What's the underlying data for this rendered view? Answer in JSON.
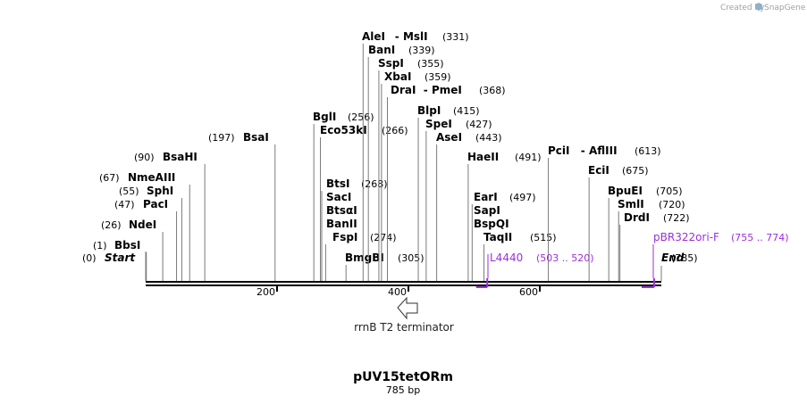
{
  "credit": {
    "prefix": "Created by",
    "brand": "SnapGene"
  },
  "map": {
    "name": "pUV15tetORm",
    "length_label": "785 bp",
    "length": 785,
    "ruler_ticks": [
      {
        "pos": 200,
        "label": "200"
      },
      {
        "pos": 400,
        "label": "400"
      },
      {
        "pos": 600,
        "label": "600"
      }
    ],
    "ends": [
      {
        "name": "Start",
        "pos": 0,
        "pos_label": "(0)"
      },
      {
        "name": "End",
        "pos": 785,
        "pos_label": "(785)"
      }
    ],
    "sites": [
      {
        "name": "BbsI",
        "pos": 1,
        "pos_label": "(1)"
      },
      {
        "name": "NdeI",
        "pos": 26,
        "pos_label": "(26)"
      },
      {
        "name": "PacI",
        "pos": 47,
        "pos_label": "(47)"
      },
      {
        "name": "SphI",
        "pos": 55,
        "pos_label": "(55)"
      },
      {
        "name": "NmeAIII",
        "pos": 67,
        "pos_label": "(67)"
      },
      {
        "name": "BsaHI",
        "pos": 90,
        "pos_label": "(90)"
      },
      {
        "name": "BsaI",
        "pos": 197,
        "pos_label": "(197)"
      },
      {
        "name": "BglI",
        "pos": 256,
        "pos_label": "(256)"
      },
      {
        "name": "Eco53kI",
        "pos": 266,
        "pos_label": "(266)"
      },
      {
        "name": "BtsI",
        "pos": 268,
        "pos_label": "(268)"
      },
      {
        "name": "SacI",
        "pos": 268,
        "pos_label": ""
      },
      {
        "name": "BtsαI",
        "pos": 268,
        "pos_label": ""
      },
      {
        "name": "BanII",
        "pos": 268,
        "pos_label": ""
      },
      {
        "name": "FspI",
        "pos": 274,
        "pos_label": "(274)"
      },
      {
        "name": "BmgBI",
        "pos": 305,
        "pos_label": "(305)"
      },
      {
        "name": "AleI",
        "name2": "MslI",
        "pos": 331,
        "pos_label": "(331)"
      },
      {
        "name": "BanI",
        "pos": 339,
        "pos_label": "(339)"
      },
      {
        "name": "SspI",
        "pos": 355,
        "pos_label": "(355)"
      },
      {
        "name": "XbaI",
        "pos": 359,
        "pos_label": "(359)"
      },
      {
        "name": "DraI",
        "name2": "PmeI",
        "pos": 368,
        "pos_label": "(368)"
      },
      {
        "name": "BlpI",
        "pos": 415,
        "pos_label": "(415)"
      },
      {
        "name": "SpeI",
        "pos": 427,
        "pos_label": "(427)"
      },
      {
        "name": "AseI",
        "pos": 443,
        "pos_label": "(443)"
      },
      {
        "name": "HaeII",
        "pos": 491,
        "pos_label": "(491)"
      },
      {
        "name": "EarI",
        "pos": 497,
        "pos_label": "(497)"
      },
      {
        "name": "SapI",
        "pos": 497,
        "pos_label": ""
      },
      {
        "name": "BspQI",
        "pos": 497,
        "pos_label": ""
      },
      {
        "name": "TaqII",
        "pos": 515,
        "pos_label": "(515)"
      },
      {
        "name": "PciI",
        "name2": "AflIII",
        "pos": 613,
        "pos_label": "(613)"
      },
      {
        "name": "EciI",
        "pos": 675,
        "pos_label": "(675)"
      },
      {
        "name": "BpuEI",
        "pos": 705,
        "pos_label": "(705)"
      },
      {
        "name": "SmlI",
        "pos": 720,
        "pos_label": "(720)"
      },
      {
        "name": "DrdI",
        "pos": 722,
        "pos_label": "(722)"
      }
    ],
    "primers": [
      {
        "name": "L4440",
        "range": "(503 .. 520)",
        "start": 503,
        "end": 520,
        "color": "#9b30d9"
      },
      {
        "name": "pBR322ori-F",
        "range": "(755 .. 774)",
        "start": 755,
        "end": 774,
        "color": "#9b30d9"
      }
    ],
    "features": [
      {
        "name": "rrnB T2 terminator",
        "pos": 400,
        "direction": "reverse"
      }
    ]
  }
}
